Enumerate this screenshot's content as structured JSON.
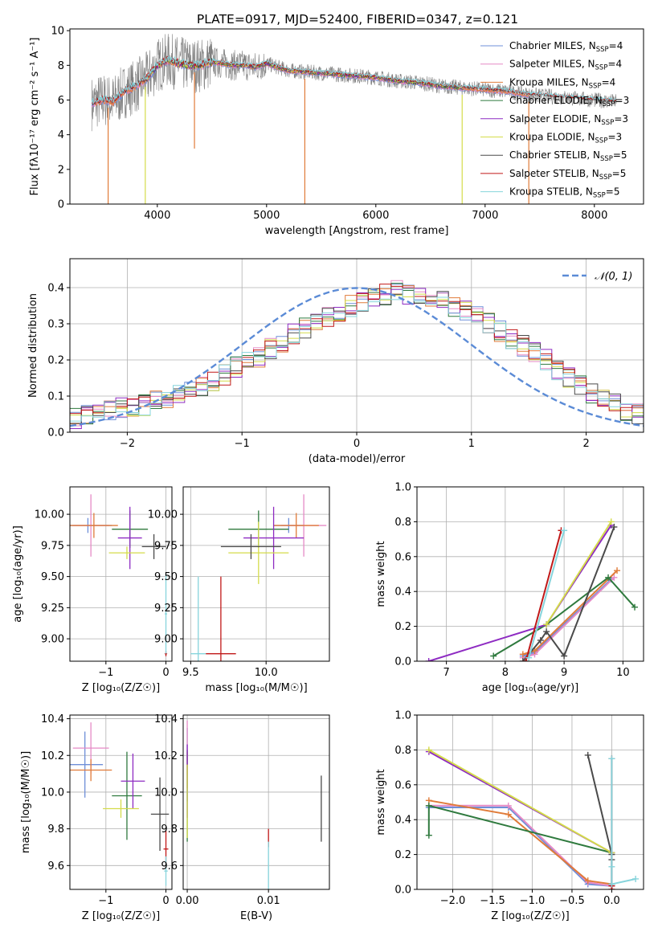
{
  "title": "PLATE=0917, MJD=52400, FIBERID=0347, z=0.121",
  "colors": {
    "chabrier_miles": "#6f8fd8",
    "salpeter_miles": "#e58ac6",
    "kroupa_miles": "#e07b39",
    "chabrier_elodie": "#2f7a3e",
    "salpeter_elodie": "#8e2bc2",
    "kroupa_elodie": "#d4dc4a",
    "chabrier_stelib": "#4a4a4a",
    "salpeter_stelib": "#c01818",
    "kroupa_stelib": "#86d4dc",
    "data": "#808080",
    "grid": "#b0b0b0"
  },
  "chart_data": [
    {
      "id": "spectrum",
      "type": "line",
      "xlabel": "wavelength [Angstrom, rest frame]",
      "ylabel": "Flux [fλ10⁻¹⁷ erg cm⁻² s⁻¹ A⁻¹]",
      "xlim": [
        3200,
        8450
      ],
      "ylim": [
        0,
        10.1
      ],
      "xticks": [
        4000,
        5000,
        6000,
        7000,
        8000
      ],
      "yticks": [
        0,
        2,
        4,
        6,
        8,
        10
      ],
      "grid": false,
      "legend_position": "top-right",
      "continuum": {
        "x": [
          3400,
          3500,
          3600,
          3700,
          3800,
          3900,
          4000,
          4100,
          4200,
          4300,
          4400,
          4500,
          4600,
          4700,
          4800,
          4900,
          5000,
          5200,
          5400,
          5600,
          5800,
          6000,
          6200,
          6400,
          6600,
          6800,
          7000,
          7200,
          7400,
          7600,
          7800,
          8000,
          8200
        ],
        "y": [
          5.8,
          6.0,
          5.9,
          6.5,
          6.8,
          7.2,
          8.0,
          8.3,
          8.1,
          8.0,
          8.0,
          8.2,
          8.1,
          8.0,
          8.0,
          7.9,
          8.1,
          7.7,
          7.6,
          7.5,
          7.4,
          7.3,
          7.1,
          7.0,
          6.8,
          6.7,
          6.6,
          6.5,
          6.3,
          6.2,
          6.1,
          6.0,
          5.9
        ]
      },
      "series": [
        {
          "name": "Chabrier MILES, N_SSP=4",
          "label_main": "Chabrier MILES, N",
          "label_sub": "SSP",
          "label_tail": "=4",
          "color_key": "chabrier_miles",
          "xmin": 3400,
          "xmax": 7400
        },
        {
          "name": "Salpeter MILES, N_SSP=4",
          "label_main": "Salpeter MILES, N",
          "label_sub": "SSP",
          "label_tail": "=4",
          "color_key": "salpeter_miles",
          "xmin": 3400,
          "xmax": 7400
        },
        {
          "name": "Kroupa MILES, N_SSP=4",
          "label_main": "Kroupa MILES, N",
          "label_sub": "SSP",
          "label_tail": "=4",
          "color_key": "kroupa_miles",
          "xmin": 3400,
          "xmax": 7400
        },
        {
          "name": "Chabrier ELODIE, N_SSP=3",
          "label_main": "Chabrier ELODIE, N",
          "label_sub": "SSP",
          "label_tail": "=3",
          "color_key": "chabrier_elodie",
          "xmin": 3900,
          "xmax": 6800
        },
        {
          "name": "Salpeter ELODIE, N_SSP=3",
          "label_main": "Salpeter ELODIE, N",
          "label_sub": "SSP",
          "label_tail": "=3",
          "color_key": "salpeter_elodie",
          "xmin": 3900,
          "xmax": 6800
        },
        {
          "name": "Kroupa ELODIE, N_SSP=3",
          "label_main": "Kroupa ELODIE, N",
          "label_sub": "SSP",
          "label_tail": "=3",
          "color_key": "kroupa_elodie",
          "xmin": 3900,
          "xmax": 6800
        },
        {
          "name": "Chabrier STELIB, N_SSP=5",
          "label_main": "Chabrier STELIB, N",
          "label_sub": "SSP",
          "label_tail": "=5",
          "color_key": "chabrier_stelib",
          "xmin": 3400,
          "xmax": 8200
        },
        {
          "name": "Salpeter STELIB, N_SSP=5",
          "label_main": "Salpeter STELIB, N",
          "label_sub": "SSP",
          "label_tail": "=5",
          "color_key": "salpeter_stelib",
          "xmin": 3400,
          "xmax": 8200
        },
        {
          "name": "Kroupa STELIB, N_SSP=5",
          "label_main": "Kroupa STELIB, N",
          "label_sub": "SSP",
          "label_tail": "=5",
          "color_key": "kroupa_stelib",
          "xmin": 3400,
          "xmax": 8200
        }
      ],
      "dips": [
        {
          "x": 3550,
          "y": 0,
          "color_key": "kroupa_miles"
        },
        {
          "x": 3890,
          "y": 0,
          "color_key": "kroupa_elodie"
        },
        {
          "x": 4340,
          "y": 3.2,
          "color_key": "kroupa_miles"
        },
        {
          "x": 5350,
          "y": 0,
          "color_key": "kroupa_miles"
        },
        {
          "x": 6790,
          "y": 0,
          "color_key": "kroupa_elodie"
        },
        {
          "x": 7400,
          "y": 0,
          "color_key": "kroupa_miles"
        }
      ]
    },
    {
      "id": "residuals",
      "type": "bar",
      "xlabel": "(data-model)/error",
      "ylabel": "Normed distribution",
      "xlim": [
        -2.5,
        2.5
      ],
      "ylim": [
        0,
        0.48
      ],
      "xticks": [
        -2,
        -1,
        0,
        1,
        2
      ],
      "yticks": [
        0.0,
        0.1,
        0.2,
        0.3,
        0.4
      ],
      "grid": true,
      "legend_position": "top-right",
      "reference_curve": {
        "name": "N(0,1)",
        "label": "𝒩(0, 1)",
        "color": "#5b8bd6"
      },
      "bin_width": 0.1,
      "bin_start": -2.5,
      "envelope": [
        0.04,
        0.045,
        0.05,
        0.06,
        0.065,
        0.07,
        0.075,
        0.085,
        0.095,
        0.1,
        0.12,
        0.13,
        0.14,
        0.16,
        0.18,
        0.2,
        0.21,
        0.23,
        0.25,
        0.27,
        0.29,
        0.3,
        0.32,
        0.33,
        0.35,
        0.36,
        0.37,
        0.38,
        0.39,
        0.38,
        0.37,
        0.37,
        0.36,
        0.35,
        0.34,
        0.32,
        0.3,
        0.28,
        0.26,
        0.24,
        0.22,
        0.2,
        0.17,
        0.15,
        0.13,
        0.11,
        0.09,
        0.08,
        0.06,
        0.05
      ]
    },
    {
      "id": "age_vs_Z",
      "type": "scatter",
      "xlabel": "Z [log₁₀(Z/Z☉)]",
      "ylabel": "age  [log₁₀(age/yr)]",
      "xlim": [
        -1.6,
        0.1
      ],
      "ylim": [
        8.82,
        10.22
      ],
      "xticks": [
        -1,
        0
      ],
      "yticks": [
        9.0,
        9.25,
        9.5,
        9.75,
        10.0
      ],
      "grid": true,
      "points": [
        {
          "color_key": "chabrier_miles",
          "x": -1.3,
          "y": 9.91,
          "xerr": 0.4,
          "yerr": 0.06
        },
        {
          "color_key": "salpeter_miles",
          "x": -1.25,
          "y": 9.91,
          "xerr": 0.3,
          "yerr": 0.25
        },
        {
          "color_key": "kroupa_miles",
          "x": -1.2,
          "y": 9.91,
          "xerr": 0.4,
          "yerr": 0.1
        },
        {
          "color_key": "chabrier_elodie",
          "x": -0.6,
          "y": 9.88,
          "xerr": 0.3,
          "yerr": 0.15
        },
        {
          "color_key": "salpeter_elodie",
          "x": -0.6,
          "y": 9.81,
          "xerr": 0.2,
          "yerr": 0.25
        },
        {
          "color_key": "kroupa_elodie",
          "x": -0.65,
          "y": 9.69,
          "xerr": 0.3,
          "yerr": 0.05
        },
        {
          "color_key": "chabrier_stelib",
          "x": -0.2,
          "y": 9.74,
          "xerr": 0.2,
          "yerr": 0.1
        },
        {
          "color_key": "salpeter_stelib",
          "x": 0.0,
          "y": 8.88,
          "xerr": 0.02,
          "yerr": 0.02
        },
        {
          "color_key": "kroupa_stelib",
          "x": 0.0,
          "y": 9.2,
          "xerr": 0.02,
          "yerr": 0.32
        }
      ]
    },
    {
      "id": "age_vs_mass",
      "type": "scatter",
      "xlabel": "mass [log₁₀(M/M☉)]",
      "ylabel": "",
      "xlim": [
        9.45,
        10.42
      ],
      "ylim": [
        8.82,
        10.22
      ],
      "xticks": [
        9.5,
        10.0
      ],
      "yticks": [
        9.0,
        9.25,
        9.5,
        9.75,
        10.0
      ],
      "grid": true,
      "points": [
        {
          "color_key": "chabrier_miles",
          "x": 10.15,
          "y": 9.91,
          "xerr": 0.1,
          "yerr": 0.06
        },
        {
          "color_key": "salpeter_miles",
          "x": 10.25,
          "y": 9.91,
          "xerr": 0.15,
          "yerr": 0.25
        },
        {
          "color_key": "kroupa_miles",
          "x": 10.2,
          "y": 9.91,
          "xerr": 0.15,
          "yerr": 0.1
        },
        {
          "color_key": "chabrier_elodie",
          "x": 9.95,
          "y": 9.88,
          "xerr": 0.2,
          "yerr": 0.15
        },
        {
          "color_key": "salpeter_elodie",
          "x": 10.05,
          "y": 9.81,
          "xerr": 0.2,
          "yerr": 0.25
        },
        {
          "color_key": "kroupa_elodie",
          "x": 9.95,
          "y": 9.69,
          "xerr": 0.2,
          "yerr": 0.25
        },
        {
          "color_key": "chabrier_stelib",
          "x": 9.9,
          "y": 9.74,
          "xerr": 0.2,
          "yerr": 0.1
        },
        {
          "color_key": "salpeter_stelib",
          "x": 9.7,
          "y": 8.88,
          "xerr": 0.1,
          "yerr": 0.62
        },
        {
          "color_key": "kroupa_stelib",
          "x": 9.55,
          "y": 8.88,
          "xerr": 0.05,
          "yerr": 0.62
        }
      ]
    },
    {
      "id": "weight_vs_age",
      "type": "line",
      "xlabel": "age  [log₁₀(age/yr)]",
      "ylabel": "mass weight",
      "xlim": [
        6.5,
        10.35
      ],
      "ylim": [
        0,
        1.0
      ],
      "xticks": [
        7,
        8,
        9,
        10
      ],
      "yticks": [
        0.0,
        0.2,
        0.4,
        0.6,
        0.8,
        1.0
      ],
      "grid": true,
      "series": [
        {
          "color_key": "chabrier_miles",
          "x": [
            8.3,
            8.5,
            9.8
          ],
          "y": [
            0.03,
            0.05,
            0.47
          ]
        },
        {
          "color_key": "salpeter_miles",
          "x": [
            8.3,
            8.5,
            9.85
          ],
          "y": [
            0.02,
            0.04,
            0.48
          ]
        },
        {
          "color_key": "kroupa_miles",
          "x": [
            8.3,
            8.5,
            9.9
          ],
          "y": [
            0.04,
            0.06,
            0.52
          ]
        },
        {
          "color_key": "chabrier_elodie",
          "x": [
            7.8,
            8.7,
            9.75,
            10.2
          ],
          "y": [
            0.03,
            0.21,
            0.48,
            0.31
          ]
        },
        {
          "color_key": "salpeter_elodie",
          "x": [
            6.7,
            8.7,
            9.8
          ],
          "y": [
            0.0,
            0.21,
            0.78
          ]
        },
        {
          "color_key": "kroupa_elodie",
          "x": [
            8.7,
            9.8
          ],
          "y": [
            0.21,
            0.8
          ]
        },
        {
          "color_key": "chabrier_stelib",
          "x": [
            8.3,
            8.6,
            8.7,
            9.0,
            9.85
          ],
          "y": [
            0.0,
            0.12,
            0.17,
            0.03,
            0.77
          ]
        },
        {
          "color_key": "salpeter_stelib",
          "x": [
            8.35,
            8.95
          ],
          "y": [
            0.0,
            0.75
          ]
        },
        {
          "color_key": "kroupa_stelib",
          "x": [
            8.4,
            9.0
          ],
          "y": [
            0.02,
            0.75
          ]
        }
      ]
    },
    {
      "id": "mass_vs_Z",
      "type": "scatter",
      "xlabel": "Z [log₁₀(Z/Z☉)]",
      "ylabel": "mass [log₁₀(M/M☉)]",
      "xlim": [
        -1.6,
        0.1
      ],
      "ylim": [
        9.47,
        10.42
      ],
      "xticks": [
        -1,
        0
      ],
      "yticks": [
        9.6,
        9.8,
        10.0,
        10.2,
        10.4
      ],
      "grid": true,
      "points": [
        {
          "color_key": "chabrier_miles",
          "x": -1.35,
          "y": 10.15,
          "xerr": 0.3,
          "yerr": 0.18
        },
        {
          "color_key": "salpeter_miles",
          "x": -1.25,
          "y": 10.24,
          "xerr": 0.3,
          "yerr": 0.14
        },
        {
          "color_key": "kroupa_miles",
          "x": -1.25,
          "y": 10.12,
          "xerr": 0.35,
          "yerr": 0.06
        },
        {
          "color_key": "chabrier_elodie",
          "x": -0.65,
          "y": 9.98,
          "xerr": 0.25,
          "yerr": 0.24
        },
        {
          "color_key": "salpeter_elodie",
          "x": -0.55,
          "y": 10.06,
          "xerr": 0.2,
          "yerr": 0.15
        },
        {
          "color_key": "kroupa_elodie",
          "x": -0.75,
          "y": 9.91,
          "xerr": 0.3,
          "yerr": 0.05
        },
        {
          "color_key": "chabrier_stelib",
          "x": -0.1,
          "y": 9.88,
          "xerr": 0.15,
          "yerr": 0.2
        },
        {
          "color_key": "salpeter_stelib",
          "x": 0.0,
          "y": 9.69,
          "xerr": 0.04,
          "yerr": 0.1
        },
        {
          "color_key": "kroupa_stelib",
          "x": 0.0,
          "y": 9.57,
          "xerr": 0.03,
          "yerr": 0.08
        }
      ]
    },
    {
      "id": "mass_vs_EBV",
      "type": "scatter",
      "xlabel": "E(B-V)",
      "ylabel": "",
      "xlim": [
        -0.0005,
        0.0175
      ],
      "ylim": [
        9.47,
        10.42
      ],
      "xticks": [
        0.0,
        0.01
      ],
      "xtick_labels": [
        "0.00",
        "0.01"
      ],
      "yticks": [
        9.6,
        9.8,
        10.0,
        10.2,
        10.4
      ],
      "grid": true,
      "points": [
        {
          "color_key": "chabrier_miles",
          "x": 0.0,
          "y": 10.15,
          "xerr": 0,
          "yerr": 0.2
        },
        {
          "color_key": "salpeter_miles",
          "x": 0.0,
          "y": 10.24,
          "xerr": 0,
          "yerr": 0.15
        },
        {
          "color_key": "kroupa_miles",
          "x": 0.0,
          "y": 10.12,
          "xerr": 0,
          "yerr": 0.1
        },
        {
          "color_key": "chabrier_elodie",
          "x": 0.0,
          "y": 9.98,
          "xerr": 0,
          "yerr": 0.25
        },
        {
          "color_key": "salpeter_elodie",
          "x": 0.0,
          "y": 10.06,
          "xerr": 0,
          "yerr": 0.2
        },
        {
          "color_key": "kroupa_elodie",
          "x": 0.0,
          "y": 9.95,
          "xerr": 0,
          "yerr": 0.2
        },
        {
          "color_key": "chabrier_stelib",
          "x": 0.0165,
          "y": 9.91,
          "xerr": 0,
          "yerr": 0.18
        },
        {
          "color_key": "salpeter_stelib",
          "x": 0.01,
          "y": 9.75,
          "xerr": 0,
          "yerr": 0.05
        },
        {
          "color_key": "kroupa_stelib",
          "x": 0.01,
          "y": 9.6,
          "xerr": 0,
          "yerr": 0.13
        }
      ]
    },
    {
      "id": "weight_vs_Z",
      "type": "line",
      "xlabel": "Z [log₁₀(Z/Z☉)]",
      "ylabel": "mass weight",
      "xlim": [
        -2.45,
        0.4
      ],
      "ylim": [
        0,
        1.0
      ],
      "xticks": [
        -2.0,
        -1.5,
        -1.0,
        -0.5,
        0.0
      ],
      "yticks": [
        0.0,
        0.2,
        0.4,
        0.6,
        0.8,
        1.0
      ],
      "grid": true,
      "series": [
        {
          "color_key": "chabrier_miles",
          "x": [
            -2.3,
            -1.3,
            -0.3,
            0.0
          ],
          "y": [
            0.47,
            0.47,
            0.03,
            0.02
          ]
        },
        {
          "color_key": "salpeter_miles",
          "x": [
            -2.3,
            -1.3,
            -0.3,
            0.0
          ],
          "y": [
            0.48,
            0.48,
            0.04,
            0.02
          ]
        },
        {
          "color_key": "kroupa_miles",
          "x": [
            -2.3,
            -1.3,
            -0.3,
            0.0
          ],
          "y": [
            0.51,
            0.43,
            0.05,
            0.03
          ]
        },
        {
          "color_key": "chabrier_elodie",
          "x": [
            -2.3,
            -2.3,
            0.0
          ],
          "y": [
            0.31,
            0.48,
            0.21
          ]
        },
        {
          "color_key": "salpeter_elodie",
          "x": [
            -2.3,
            0.0
          ],
          "y": [
            0.79,
            0.21
          ]
        },
        {
          "color_key": "kroupa_elodie",
          "x": [
            -2.3,
            0.0
          ],
          "y": [
            0.8,
            0.21
          ]
        },
        {
          "color_key": "chabrier_stelib",
          "x": [
            -0.3,
            0.0,
            0.0,
            0.0
          ],
          "y": [
            0.77,
            0.2,
            0.17,
            0.03
          ]
        },
        {
          "color_key": "salpeter_stelib",
          "x": [
            0.0,
            0.0,
            0.0
          ],
          "y": [
            0.75,
            0.0,
            0.02
          ]
        },
        {
          "color_key": "kroupa_stelib",
          "x": [
            0.0,
            0.0,
            0.0,
            0.3
          ],
          "y": [
            0.75,
            0.13,
            0.03,
            0.06
          ]
        }
      ]
    }
  ]
}
